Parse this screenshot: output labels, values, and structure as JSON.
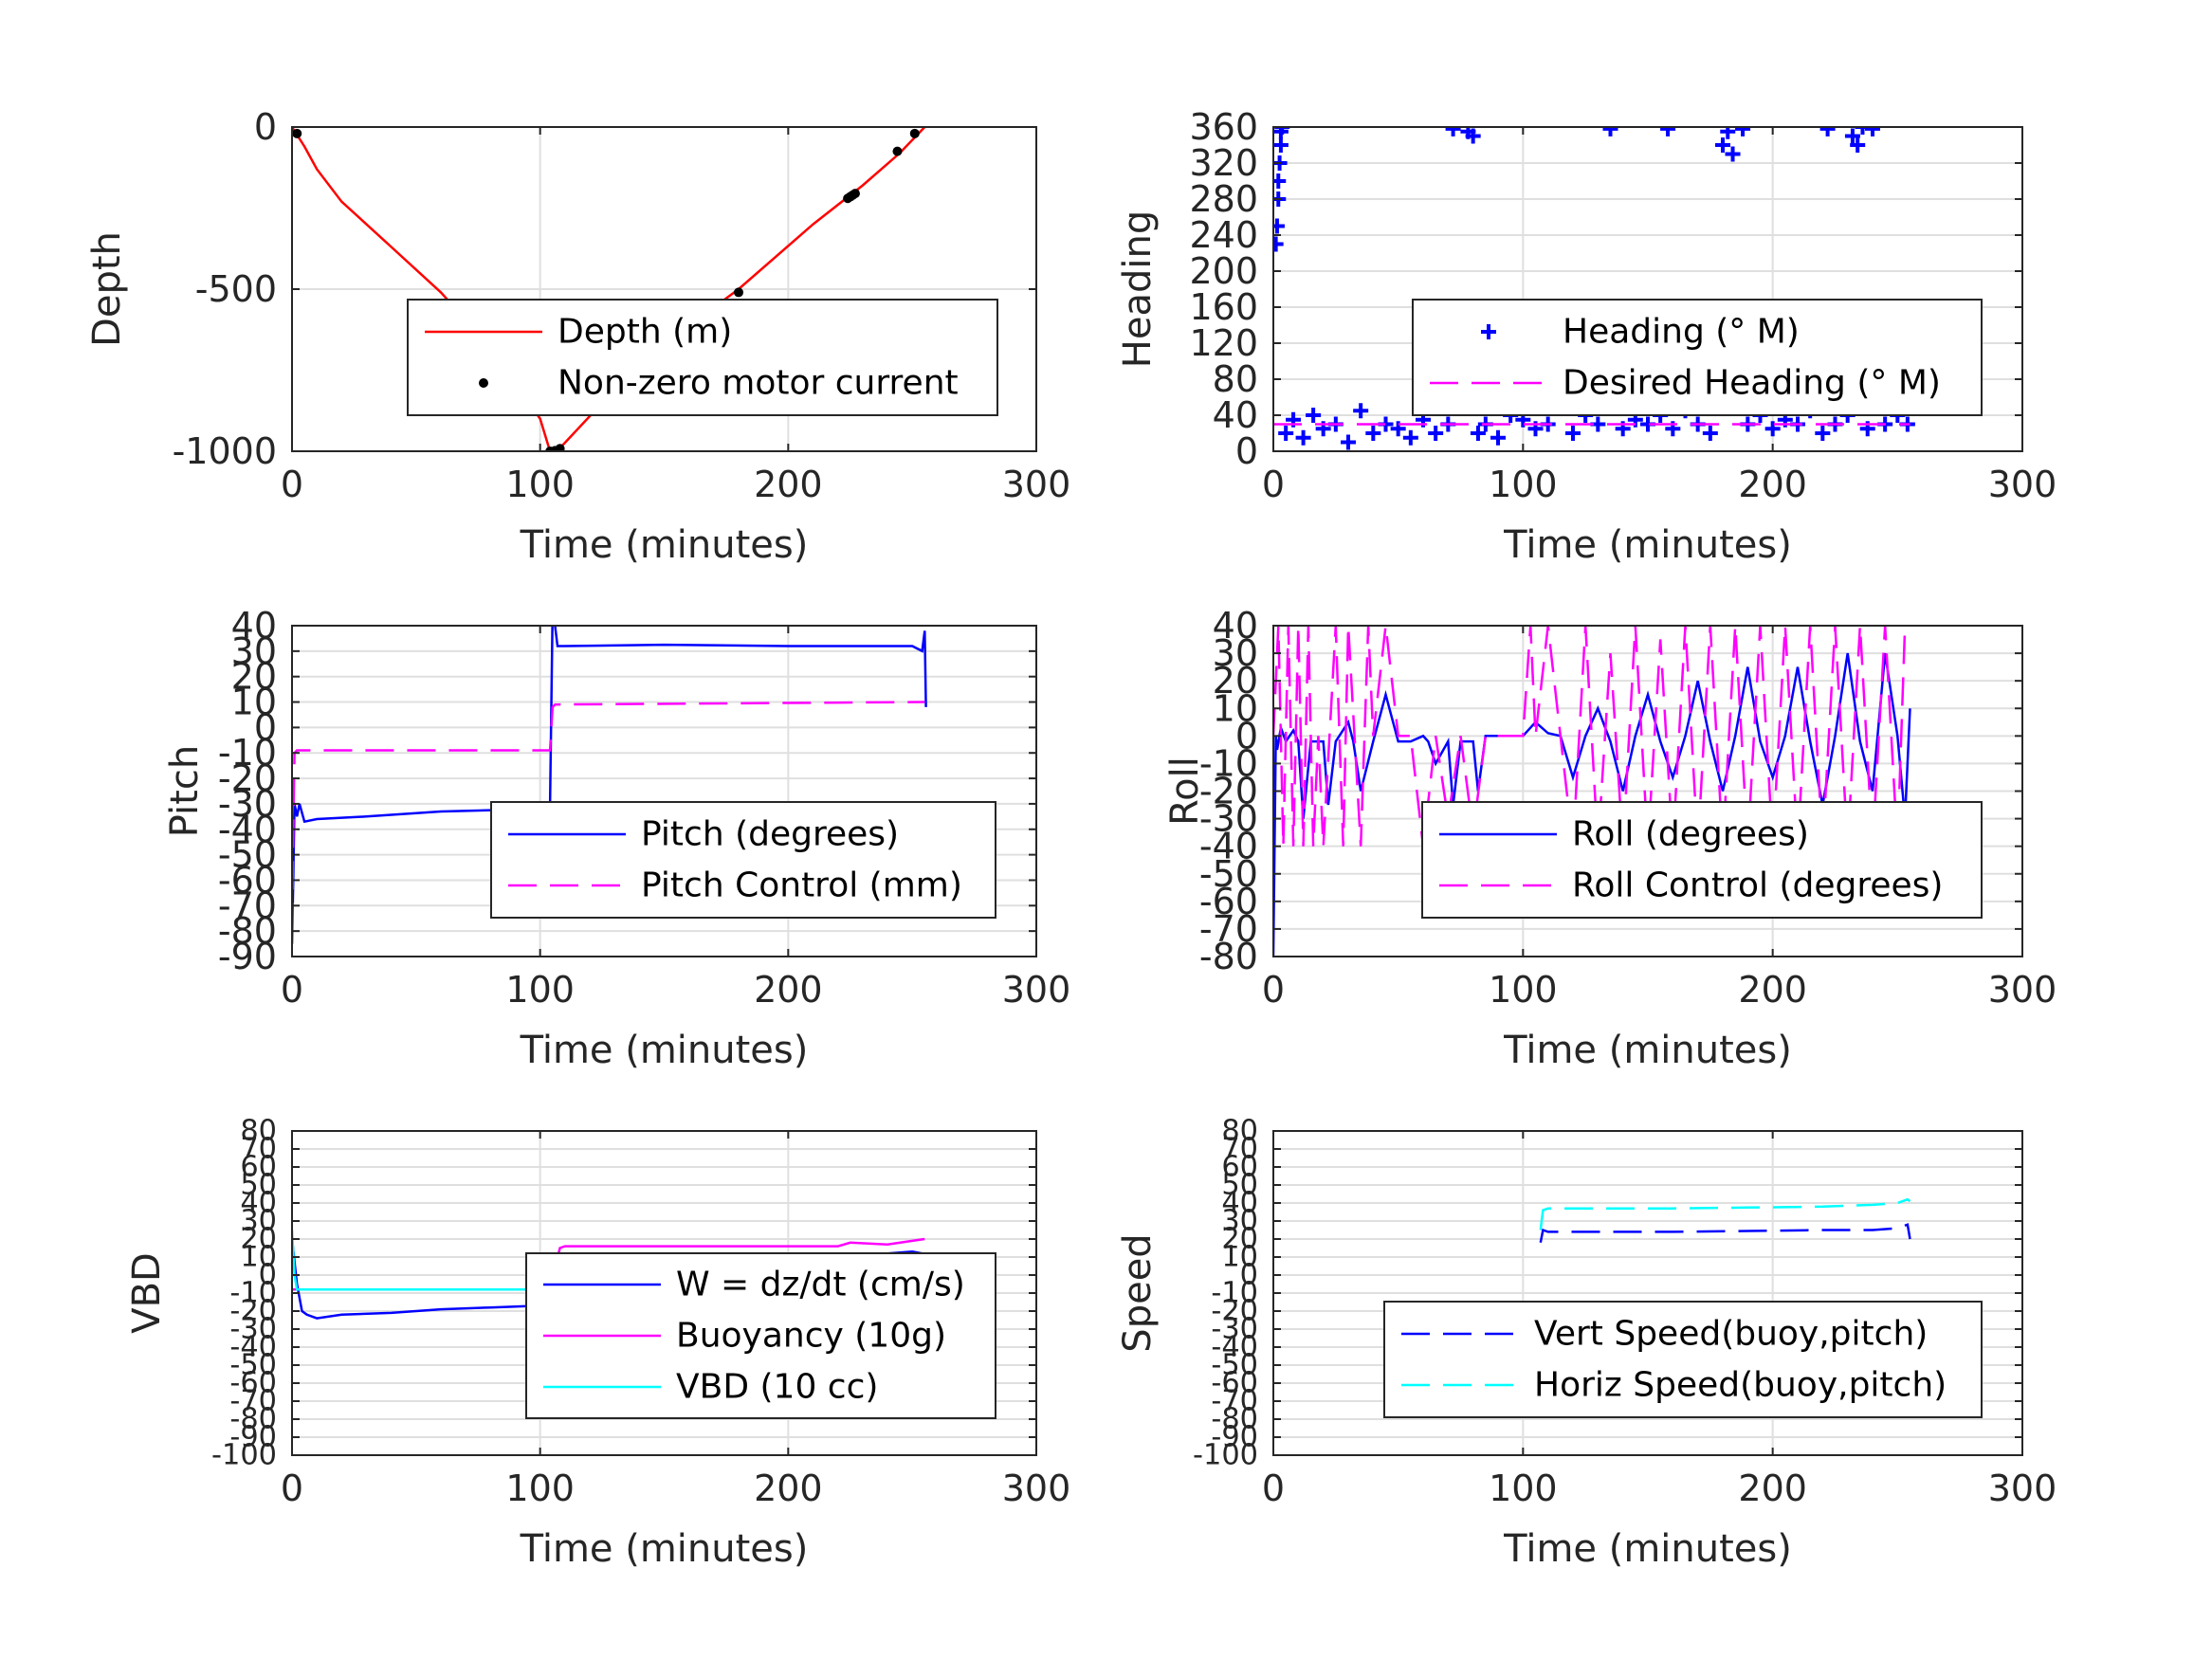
{
  "chart_data": [
    {
      "id": "depth",
      "type": "line",
      "xlabel": "Time (minutes)",
      "ylabel": "Depth",
      "xlim": [
        0,
        300
      ],
      "ylim": [
        -1000,
        0
      ],
      "xticks": [
        0,
        100,
        200,
        300
      ],
      "xtick_labels": [
        "0",
        "100",
        "200",
        "300"
      ],
      "yticks": [
        -1000,
        -500,
        0
      ],
      "ytick_labels": [
        "-1000",
        "-500",
        "0"
      ],
      "grid": true,
      "legend_placement": "center-right",
      "series": [
        {
          "name": "Depth (m)",
          "style": "line",
          "color": "#ff0000",
          "x": [
            0,
            5,
            10,
            20,
            40,
            60,
            80,
            100,
            104,
            108,
            130,
            150,
            180,
            210,
            230,
            245,
            255
          ],
          "y": [
            0,
            -60,
            -130,
            -230,
            -370,
            -510,
            -680,
            -900,
            -1000,
            -990,
            -810,
            -670,
            -500,
            -300,
            -180,
            -80,
            0
          ]
        },
        {
          "name": "Non-zero motor current",
          "style": "dots",
          "color": "#000000",
          "x": [
            2,
            104,
            106,
            108,
            180,
            224,
            225,
            226,
            227,
            244,
            251
          ],
          "y": [
            -20,
            -1000,
            -998,
            -992,
            -510,
            -220,
            -215,
            -210,
            -205,
            -75,
            -20
          ]
        }
      ]
    },
    {
      "id": "heading",
      "type": "scatter",
      "xlabel": "Time (minutes)",
      "ylabel": "Heading",
      "xlim": [
        0,
        300
      ],
      "ylim": [
        0,
        360
      ],
      "xticks": [
        0,
        100,
        200,
        300
      ],
      "xtick_labels": [
        "0",
        "100",
        "200",
        "300"
      ],
      "yticks": [
        0,
        40,
        80,
        120,
        160,
        200,
        240,
        280,
        320,
        360
      ],
      "ytick_labels": [
        "0",
        "40",
        "80",
        "120",
        "160",
        "200",
        "240",
        "280",
        "320",
        "360"
      ],
      "grid": true,
      "legend_placement": "center-right",
      "series": [
        {
          "name": "Heading (° M)",
          "style": "plus",
          "color": "#0000ff",
          "x": [
            1,
            1.5,
            2,
            2,
            2.5,
            3,
            3,
            3.5,
            5,
            8,
            12,
            16,
            20,
            25,
            30,
            35,
            40,
            45,
            50,
            55,
            60,
            65,
            70,
            72,
            78,
            80,
            82,
            85,
            90,
            95,
            100,
            105,
            110,
            115,
            120,
            125,
            130,
            135,
            140,
            145,
            150,
            155,
            158,
            160,
            165,
            170,
            175,
            180,
            182,
            184,
            186,
            188,
            190,
            195,
            200,
            205,
            210,
            215,
            220,
            222,
            225,
            230,
            232,
            234,
            236,
            238,
            240,
            245,
            250,
            254
          ],
          "y": [
            230,
            250,
            280,
            300,
            320,
            340,
            355,
            360,
            20,
            35,
            15,
            40,
            25,
            30,
            10,
            45,
            20,
            30,
            25,
            15,
            35,
            20,
            30,
            358,
            355,
            350,
            20,
            30,
            15,
            40,
            35,
            25,
            30,
            50,
            20,
            40,
            30,
            358,
            25,
            35,
            30,
            40,
            358,
            25,
            45,
            30,
            20,
            340,
            355,
            330,
            50,
            358,
            30,
            40,
            25,
            35,
            30,
            45,
            20,
            358,
            30,
            40,
            350,
            340,
            360,
            25,
            358,
            30,
            40,
            30
          ]
        },
        {
          "name": "Desired Heading (° M)",
          "style": "dash",
          "color": "#ff00ff",
          "x": [
            0,
            255
          ],
          "y": [
            30,
            30
          ]
        }
      ]
    },
    {
      "id": "pitch",
      "type": "line",
      "xlabel": "Time (minutes)",
      "ylabel": "Pitch",
      "xlim": [
        0,
        300
      ],
      "ylim": [
        -90,
        40
      ],
      "xticks": [
        0,
        100,
        200,
        300
      ],
      "xtick_labels": [
        "0",
        "100",
        "200",
        "300"
      ],
      "yticks": [
        -90,
        -80,
        -70,
        -60,
        -50,
        -40,
        -30,
        -20,
        -10,
        0,
        10,
        20,
        30,
        40
      ],
      "ytick_labels": [
        "-90",
        "-80",
        "-70",
        "-60",
        "-50",
        "-40",
        "-30",
        "-20",
        "-10",
        "0",
        "10",
        "20",
        "30",
        "40"
      ],
      "grid": true,
      "legend_placement": "center-right",
      "series": [
        {
          "name": "Pitch (degrees)",
          "style": "line",
          "color": "#0000ff",
          "x": [
            0,
            0.5,
            1,
            2,
            3,
            5,
            10,
            30,
            60,
            100,
            104,
            105,
            106,
            107,
            110,
            150,
            200,
            250,
            254,
            255,
            255.5
          ],
          "y": [
            -85,
            -60,
            -30,
            -35,
            -30,
            -37,
            -36,
            -35,
            -33,
            -32,
            -31,
            45,
            40,
            32,
            32,
            32.5,
            32,
            32,
            30,
            38,
            8
          ]
        },
        {
          "name": "Pitch Control (mm)",
          "style": "dash",
          "color": "#ff00ff",
          "x": [
            0,
            0.5,
            1,
            2,
            104,
            105,
            106,
            255
          ],
          "y": [
            -80,
            -40,
            -10,
            -9,
            -9,
            8,
            9,
            10
          ]
        }
      ]
    },
    {
      "id": "roll",
      "type": "line",
      "xlabel": "Time (minutes)",
      "ylabel": "Roll",
      "xlim": [
        0,
        300
      ],
      "ylim": [
        -80,
        40
      ],
      "xticks": [
        0,
        100,
        200,
        300
      ],
      "xtick_labels": [
        "0",
        "100",
        "200",
        "300"
      ],
      "yticks": [
        -80,
        -70,
        -60,
        -50,
        -40,
        -30,
        -20,
        -10,
        0,
        10,
        20,
        30,
        40
      ],
      "ytick_labels": [
        "-80",
        "-70",
        "-60",
        "-50",
        "-40",
        "-30",
        "-20",
        "-10",
        "0",
        "10",
        "20",
        "30",
        "40"
      ],
      "grid": true,
      "legend_placement": "center-right",
      "series": [
        {
          "name": "Roll (degrees)",
          "style": "line",
          "color": "#0000ff",
          "x": [
            0,
            1,
            1.5,
            3,
            5,
            8,
            10,
            12,
            15,
            20,
            22,
            25,
            30,
            32,
            35,
            40,
            45,
            50,
            55,
            60,
            62,
            65,
            70,
            72,
            75,
            80,
            82,
            85,
            90,
            95,
            100,
            105,
            110,
            115,
            120,
            125,
            130,
            135,
            140,
            145,
            150,
            155,
            160,
            165,
            170,
            175,
            180,
            185,
            190,
            195,
            200,
            205,
            210,
            215,
            220,
            225,
            230,
            235,
            240,
            245,
            250,
            253,
            255
          ],
          "y": [
            -80,
            0,
            -5,
            3,
            -2,
            2,
            -2,
            -30,
            -2,
            -2,
            -25,
            -2,
            5,
            -2,
            -20,
            -2,
            15,
            -2,
            -2,
            0,
            -2,
            -10,
            -2,
            -25,
            -2,
            -2,
            -20,
            0,
            0,
            0,
            0,
            5,
            1,
            0,
            -15,
            0,
            10,
            -2,
            -20,
            0,
            15,
            -2,
            -15,
            0,
            20,
            -2,
            -20,
            0,
            25,
            -2,
            -15,
            0,
            25,
            -2,
            -25,
            0,
            30,
            -2,
            -20,
            30,
            0,
            -30,
            10
          ]
        },
        {
          "name": "Roll Control (degrees)",
          "style": "dash",
          "color": "#ff00ff",
          "x": [
            0,
            2,
            4,
            6,
            8,
            10,
            12,
            14,
            16,
            18,
            20,
            25,
            28,
            30,
            35,
            38,
            40,
            45,
            50,
            55,
            60,
            65,
            70,
            75,
            80,
            85,
            90,
            95,
            100,
            103,
            105,
            110,
            115,
            120,
            125,
            130,
            135,
            140,
            145,
            150,
            155,
            160,
            165,
            170,
            175,
            180,
            185,
            190,
            195,
            200,
            205,
            210,
            215,
            220,
            225,
            230,
            235,
            240,
            245,
            250,
            253
          ],
          "y": [
            0,
            40,
            -40,
            40,
            -40,
            40,
            -40,
            40,
            -40,
            0,
            -40,
            40,
            -40,
            40,
            -40,
            40,
            0,
            40,
            0,
            0,
            -40,
            0,
            -30,
            0,
            -35,
            0,
            0,
            0,
            0,
            40,
            0,
            40,
            0,
            -40,
            40,
            -40,
            30,
            -40,
            40,
            -40,
            35,
            -40,
            40,
            -40,
            40,
            -40,
            40,
            -40,
            40,
            -40,
            40,
            -40,
            40,
            -40,
            40,
            -40,
            40,
            -40,
            40,
            -40,
            40
          ]
        }
      ]
    },
    {
      "id": "vbd",
      "type": "line",
      "xlabel": "Time (minutes)",
      "ylabel": "VBD",
      "xlim": [
        0,
        300
      ],
      "ylim": [
        -100,
        80
      ],
      "xticks": [
        0,
        100,
        200,
        300
      ],
      "xtick_labels": [
        "0",
        "100",
        "200",
        "300"
      ],
      "yticks": [
        -100,
        -90,
        -80,
        -70,
        -60,
        -50,
        -40,
        -30,
        -20,
        -10,
        0,
        10,
        20,
        30,
        40,
        50,
        60,
        70,
        80
      ],
      "ytick_labels": [
        "-100",
        "-90",
        "-80",
        "-70",
        "-60",
        "-50",
        "-40",
        "-30",
        "-20",
        "-10",
        "0",
        "10",
        "20",
        "30",
        "40",
        "50",
        "60",
        "70",
        "80"
      ],
      "grid": true,
      "legend_placement": "center-right",
      "series": [
        {
          "name": "W = dz/dt (cm/s)",
          "style": "line",
          "color": "#0000ff",
          "x": [
            0,
            2,
            4,
            6,
            10,
            20,
            40,
            60,
            80,
            100,
            104,
            106,
            108,
            110,
            130,
            160,
            190,
            220,
            240,
            250,
            254,
            255
          ],
          "y": [
            20,
            -5,
            -20,
            -22,
            -24,
            -22,
            -21,
            -19,
            -18,
            -17,
            -16,
            5,
            12,
            10,
            11,
            11,
            12,
            11,
            12,
            13,
            12,
            5
          ]
        },
        {
          "name": "Buoyancy (10g)",
          "style": "line",
          "color": "#ff00ff",
          "x": [
            0,
            104,
            106,
            108,
            110,
            150,
            200,
            220,
            225,
            240,
            250,
            255
          ],
          "y": [
            -8,
            -8,
            5,
            15,
            16,
            16,
            16,
            16,
            18,
            17,
            19,
            20
          ]
        },
        {
          "name": "VBD (10 cc)",
          "style": "line",
          "color": "#00ffff",
          "x": [
            0,
            1,
            2,
            104,
            106,
            108,
            110,
            150,
            200,
            240,
            250,
            255
          ],
          "y": [
            25,
            0,
            -8,
            -8,
            5,
            10,
            9,
            10,
            10,
            10,
            11,
            11
          ]
        }
      ]
    },
    {
      "id": "speed",
      "type": "line",
      "xlabel": "Time (minutes)",
      "ylabel": "Speed",
      "xlim": [
        0,
        300
      ],
      "ylim": [
        -100,
        80
      ],
      "xticks": [
        0,
        100,
        200,
        300
      ],
      "xtick_labels": [
        "0",
        "100",
        "200",
        "300"
      ],
      "yticks": [
        -100,
        -90,
        -80,
        -70,
        -60,
        -50,
        -40,
        -30,
        -20,
        -10,
        0,
        10,
        20,
        30,
        40,
        50,
        60,
        70,
        80
      ],
      "ytick_labels": [
        "-100",
        "-90",
        "-80",
        "-70",
        "-60",
        "-50",
        "-40",
        "-30",
        "-20",
        "-10",
        "0",
        "10",
        "20",
        "30",
        "40",
        "50",
        "60",
        "70",
        "80"
      ],
      "grid": true,
      "legend_placement": "bottom-right",
      "series": [
        {
          "name": "Vert Speed(buoy,pitch)",
          "style": "dash",
          "color": "#0000ff",
          "x": [
            107,
            108,
            110,
            130,
            160,
            190,
            220,
            240,
            250,
            254,
            255
          ],
          "y": [
            18,
            25,
            24,
            24,
            24,
            24.5,
            25,
            25,
            26,
            28,
            20
          ]
        },
        {
          "name": "Horiz Speed(buoy,pitch)",
          "style": "dash",
          "color": "#00ffff",
          "x": [
            107,
            108,
            110,
            130,
            160,
            190,
            220,
            240,
            250,
            254,
            255
          ],
          "y": [
            25,
            36,
            37,
            37,
            37,
            37.5,
            38,
            39,
            40,
            42,
            41
          ]
        }
      ]
    }
  ]
}
